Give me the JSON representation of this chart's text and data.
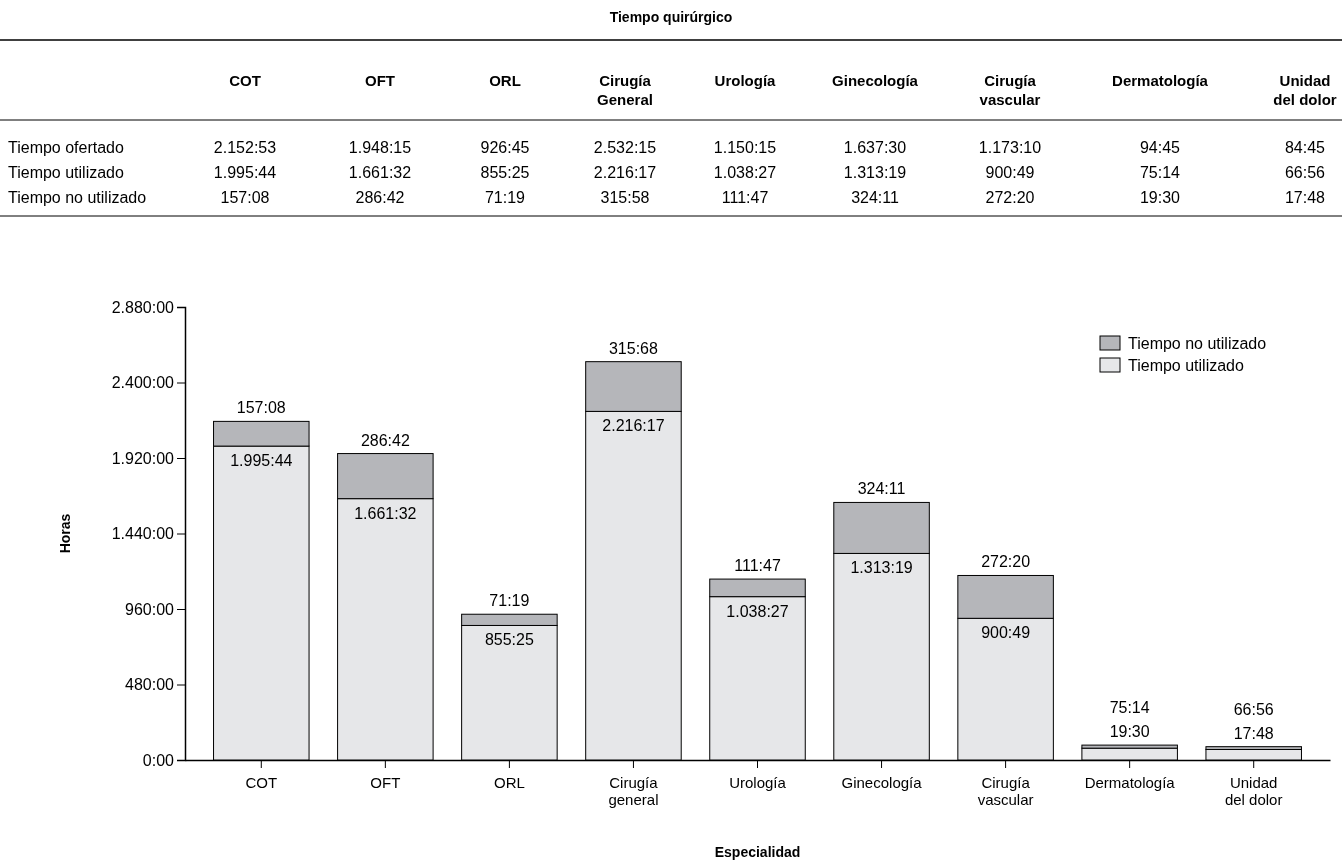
{
  "chart_data": [
    {
      "type": "other",
      "title": "Tiempo quirúrgico",
      "categories": [
        "COT",
        "OFT",
        "ORL",
        "Cirugía General",
        "Urología",
        "Ginecología",
        "Cirugía vascular",
        "Dermatología",
        "Unidad del dolor"
      ],
      "y_categories": [
        "Tiempo ofertado",
        "Tiempo utilizado",
        "Tiempo no utilizado"
      ],
      "cell_labels": [
        [
          "2.152:53",
          "1.948:15",
          "926:45",
          "2.532:15",
          "1.150:15",
          "1.637:30",
          "1.173:10",
          "94:45",
          "84:45"
        ],
        [
          "1.995:44",
          "1.661:32",
          "855:25",
          "2.216:17",
          "1.038:27",
          "1.313:19",
          "900:49",
          "75:14",
          "66:56"
        ],
        [
          "157:08",
          "286:42",
          "71:19",
          "315:58",
          "111:47",
          "324:11",
          "272:20",
          "19:30",
          "17:48"
        ]
      ]
    },
    {
      "type": "bar",
      "stacked": true,
      "xlabel": "Especialidad",
      "ylabel": "Horas",
      "legend": "top right",
      "categories": [
        "COT",
        "OFT",
        "ORL",
        "Cirugía general",
        "Urología",
        "Ginecología",
        "Cirugía vascular",
        "Dermatología",
        "Unidad del dolor"
      ],
      "ylim": [
        0,
        2880
      ],
      "yticks": [
        {
          "value": 0,
          "label": "0:00"
        },
        {
          "value": 480,
          "label": "480:00"
        },
        {
          "value": 960,
          "label": "960:00"
        },
        {
          "value": 1440,
          "label": "1.440:00"
        },
        {
          "value": 1920,
          "label": "1.920:00"
        },
        {
          "value": 2400,
          "label": "2.400:00"
        },
        {
          "value": 2880,
          "label": "2.880:00"
        }
      ],
      "series": [
        {
          "name": "Tiempo utilizado",
          "color": "#e6e7e9",
          "values": [
            1995.733,
            1661.533,
            855.417,
            2216.283,
            1038.45,
            1313.317,
            900.817,
            75.233,
            66.933
          ],
          "value_labels": [
            "1.995:44",
            "1.661:32",
            "855:25",
            "2.216:17",
            "1.038:27",
            "1.313:19",
            "900:49",
            "75:14",
            "66:56"
          ]
        },
        {
          "name": "Tiempo no utilizado",
          "color": "#b5b6ba",
          "values": [
            157.133,
            286.7,
            71.317,
            316.133,
            111.783,
            324.183,
            272.333,
            19.5,
            17.8
          ],
          "value_labels": [
            "157:08",
            "286:42",
            "71:19",
            "315:68",
            "111:47",
            "324:11",
            "272:20",
            "19:30",
            "17:48"
          ]
        }
      ]
    }
  ]
}
